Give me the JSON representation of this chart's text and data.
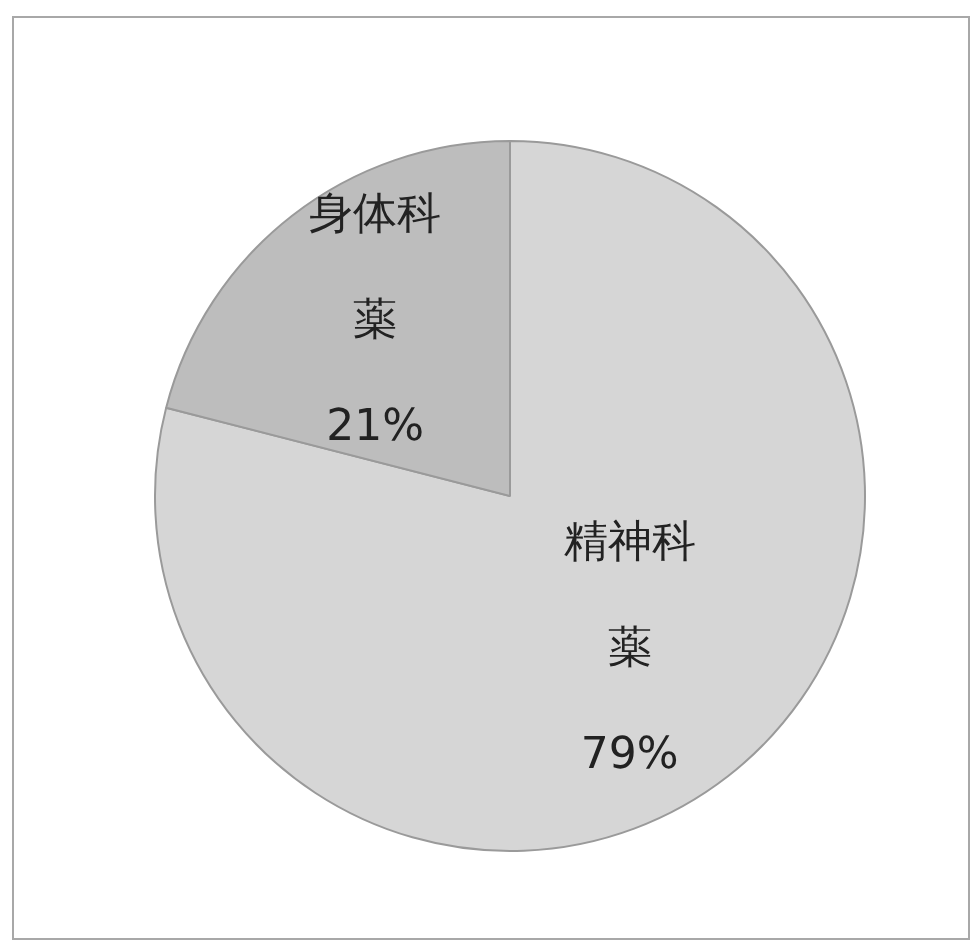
{
  "chart_data": {
    "type": "pie",
    "categories": [
      "精神科薬",
      "身体科薬"
    ],
    "values": [
      79,
      21
    ],
    "colors": [
      "#d6d6d6",
      "#bdbdbd"
    ],
    "value_labels": [
      "79%",
      "21%"
    ],
    "legend": false
  }
}
